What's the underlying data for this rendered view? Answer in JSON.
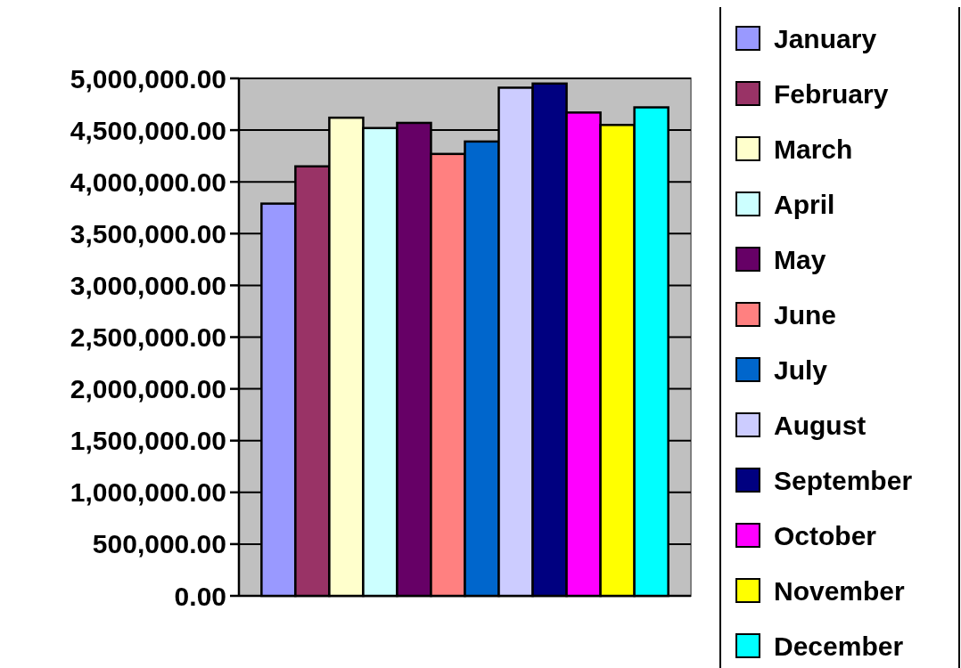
{
  "chart_data": {
    "type": "bar",
    "categories": [
      null
    ],
    "series": [
      {
        "name": "January",
        "color": "#9999ff",
        "values": [
          3790000
        ]
      },
      {
        "name": "February",
        "color": "#993366",
        "values": [
          4150000
        ]
      },
      {
        "name": "March",
        "color": "#ffffcc",
        "values": [
          4620000
        ]
      },
      {
        "name": "April",
        "color": "#ccffff",
        "values": [
          4520000
        ]
      },
      {
        "name": "May",
        "color": "#660066",
        "values": [
          4570000
        ]
      },
      {
        "name": "June",
        "color": "#ff8080",
        "values": [
          4270000
        ]
      },
      {
        "name": "July",
        "color": "#0066cc",
        "values": [
          4390000
        ]
      },
      {
        "name": "August",
        "color": "#ccccff",
        "values": [
          4910000
        ]
      },
      {
        "name": "September",
        "color": "#000080",
        "values": [
          4950000
        ]
      },
      {
        "name": "October",
        "color": "#ff00ff",
        "values": [
          4670000
        ]
      },
      {
        "name": "November",
        "color": "#ffff00",
        "values": [
          4550000
        ]
      },
      {
        "name": "December",
        "color": "#00ffff",
        "values": [
          4720000
        ]
      }
    ],
    "ylim": [
      0,
      5000000
    ],
    "yticks": [
      {
        "value": 0,
        "label": "0.00"
      },
      {
        "value": 500000,
        "label": "500,000.00"
      },
      {
        "value": 1000000,
        "label": "1,000,000.00"
      },
      {
        "value": 1500000,
        "label": "1,500,000.00"
      },
      {
        "value": 2000000,
        "label": "2,000,000.00"
      },
      {
        "value": 2500000,
        "label": "2,500,000.00"
      },
      {
        "value": 3000000,
        "label": "3,000,000.00"
      },
      {
        "value": 3500000,
        "label": "3,500,000.00"
      },
      {
        "value": 4000000,
        "label": "4,000,000.00"
      },
      {
        "value": 4500000,
        "label": "4,500,000.00"
      },
      {
        "value": 5000000,
        "label": "5,000,000.00"
      }
    ],
    "grid": "y",
    "legend": "right"
  }
}
